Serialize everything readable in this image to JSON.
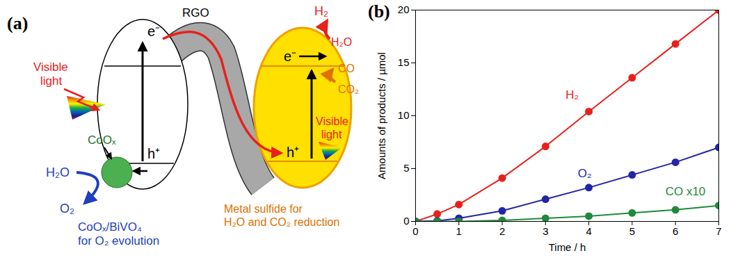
{
  "diagram": {
    "panel_label": "(a)",
    "texts": {
      "visible_light_left": [
        "Visible",
        "light"
      ],
      "coox": "CoOₓ",
      "h2o_left": "H₂O",
      "o2_left": "O₂",
      "coox_bivo4": [
        "CoOₓ/BiVO₄",
        "for O₂ evolution"
      ],
      "rgo": "RGO",
      "e_left": "e⁻",
      "h_left": "h⁺",
      "e_right": "e⁻",
      "h_right": "h⁺",
      "h2": "H₂",
      "h2o_right": "H₂O",
      "co": "CO",
      "co2": "CO₂",
      "visible_light_right": [
        "Visible",
        "light"
      ],
      "metal_sulfide": [
        "Metal sulfide for",
        "H₂O and CO₂ reduction"
      ]
    }
  },
  "chart_data": {
    "type": "line",
    "panel_label": "(b)",
    "xlabel": "Time / h",
    "ylabel": "Amounts of products / µmol",
    "x": [
      0,
      0.5,
      1,
      2,
      3,
      4,
      5,
      6,
      7
    ],
    "series": [
      {
        "name": "H₂",
        "color": "#e8201c",
        "values": [
          0,
          0.7,
          1.6,
          4.1,
          7.1,
          10.4,
          13.6,
          16.8,
          20.0
        ]
      },
      {
        "name": "O₂",
        "color": "#2424a8",
        "values": [
          0,
          0.05,
          0.3,
          1.0,
          2.1,
          3.2,
          4.4,
          5.6,
          7.0
        ]
      },
      {
        "name": "CO x10",
        "color": "#1f8a3a",
        "values": [
          0,
          0,
          0,
          0.1,
          0.3,
          0.5,
          0.8,
          1.1,
          1.5
        ]
      }
    ],
    "xlim": [
      0,
      7
    ],
    "xticks": [
      0,
      1,
      2,
      3,
      4,
      5,
      6,
      7
    ],
    "ylim": [
      0,
      20
    ],
    "yticks": [
      0,
      5,
      10,
      15,
      20
    ],
    "marker": "circle",
    "grid": false
  }
}
